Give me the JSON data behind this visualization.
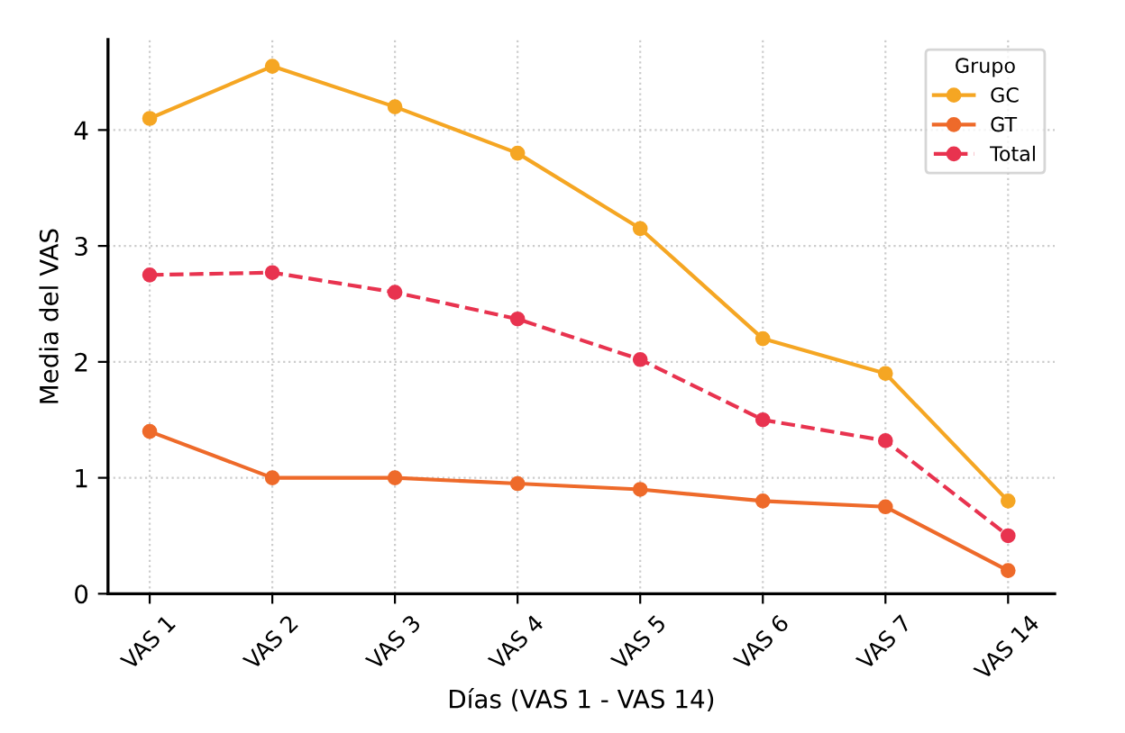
{
  "chart_data": {
    "type": "line",
    "xlabel": "Días (VAS 1 - VAS 14)",
    "ylabel": "Media del VAS",
    "legend_title": "Grupo",
    "categories": [
      "VAS 1",
      "VAS 2",
      "VAS 3",
      "VAS 4",
      "VAS 5",
      "VAS 6",
      "VAS 7",
      "VAS 14"
    ],
    "series": [
      {
        "name": "GC",
        "color": "#f5a623",
        "line_style": "solid",
        "values": [
          4.1,
          4.55,
          4.2,
          3.8,
          3.15,
          2.2,
          1.9,
          0.8
        ]
      },
      {
        "name": "GT",
        "color": "#ee6a2a",
        "line_style": "solid",
        "values": [
          1.4,
          1.0,
          1.0,
          0.95,
          0.9,
          0.8,
          0.75,
          0.2
        ]
      },
      {
        "name": "Total",
        "color": "#e8334f",
        "line_style": "dashed",
        "values": [
          2.75,
          2.77,
          2.6,
          2.37,
          2.02,
          1.5,
          1.32,
          0.5
        ]
      }
    ],
    "ylim": [
      0,
      4.78
    ],
    "yticks": [
      0,
      1,
      2,
      3,
      4
    ],
    "grid": true,
    "legend": "top right",
    "marker": "circle"
  }
}
